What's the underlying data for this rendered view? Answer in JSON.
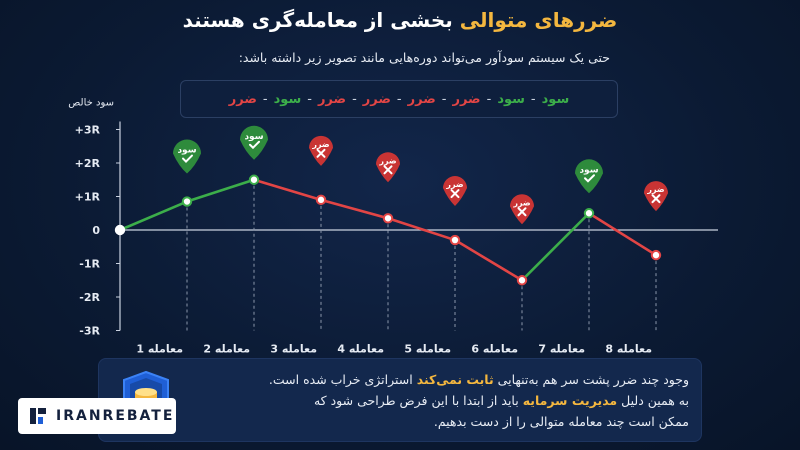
{
  "title": {
    "highlight": "ضررهای متوالی",
    "rest": " بخشی از معامله‌گری هستند"
  },
  "subtitle": "حتی یک سیستم سودآور می‌تواند دوره‌هایی مانند تصویر زیر داشته باشد:",
  "sequence": [
    "ضرر",
    "سود",
    "ضرر",
    "ضرر",
    "ضرر",
    "ضرر",
    "سود",
    "سود"
  ],
  "sequence_sep": "-",
  "colors": {
    "win": "#3cae4a",
    "loss": "#e24545",
    "win_pin": "#2e8b3c",
    "loss_pin": "#c93434",
    "accent": "#f4b73f",
    "axis": "#c9d1df",
    "grid": "#8a96aa"
  },
  "chart_data": {
    "type": "line",
    "ylabel": "سود خالص",
    "y_ticks": [
      "+3R",
      "+2R",
      "+1R",
      "0",
      "-1R",
      "-2R",
      "-3R"
    ],
    "y_tick_values": [
      3,
      2,
      1,
      0,
      -1,
      -2,
      -3
    ],
    "ylim": [
      -3,
      3
    ],
    "categories": [
      "",
      "معامله 1",
      "معامله 2",
      "معامله 3",
      "معامله 4",
      "معامله 5",
      "معامله 6",
      "معامله 7",
      "معامله 8"
    ],
    "values": [
      0,
      0.85,
      1.5,
      0.9,
      0.35,
      -0.3,
      -1.5,
      0.5,
      -0.75
    ],
    "outcomes": [
      "",
      "سود",
      "سود",
      "ضرر",
      "ضرر",
      "ضرر",
      "ضرر",
      "سود",
      "ضرر"
    ]
  },
  "note": {
    "line1_pre": "وجود چند ضرر پشت سر هم به‌تنهایی ",
    "line1_hl": "ثابت نمی‌کند",
    "line1_post": " استراتژی خراب شده است.",
    "line2_pre": "به همین دلیل ",
    "line2_hl": "مدیریت سرمایه",
    "line2_post": " باید از ابتدا با این فرض طراحی شود که",
    "line3": "ممکن است چند معامله متوالی را از دست بدهیم."
  },
  "logo": {
    "text": "IRANREBATE",
    "icon": "iranrebate-logo-icon"
  }
}
